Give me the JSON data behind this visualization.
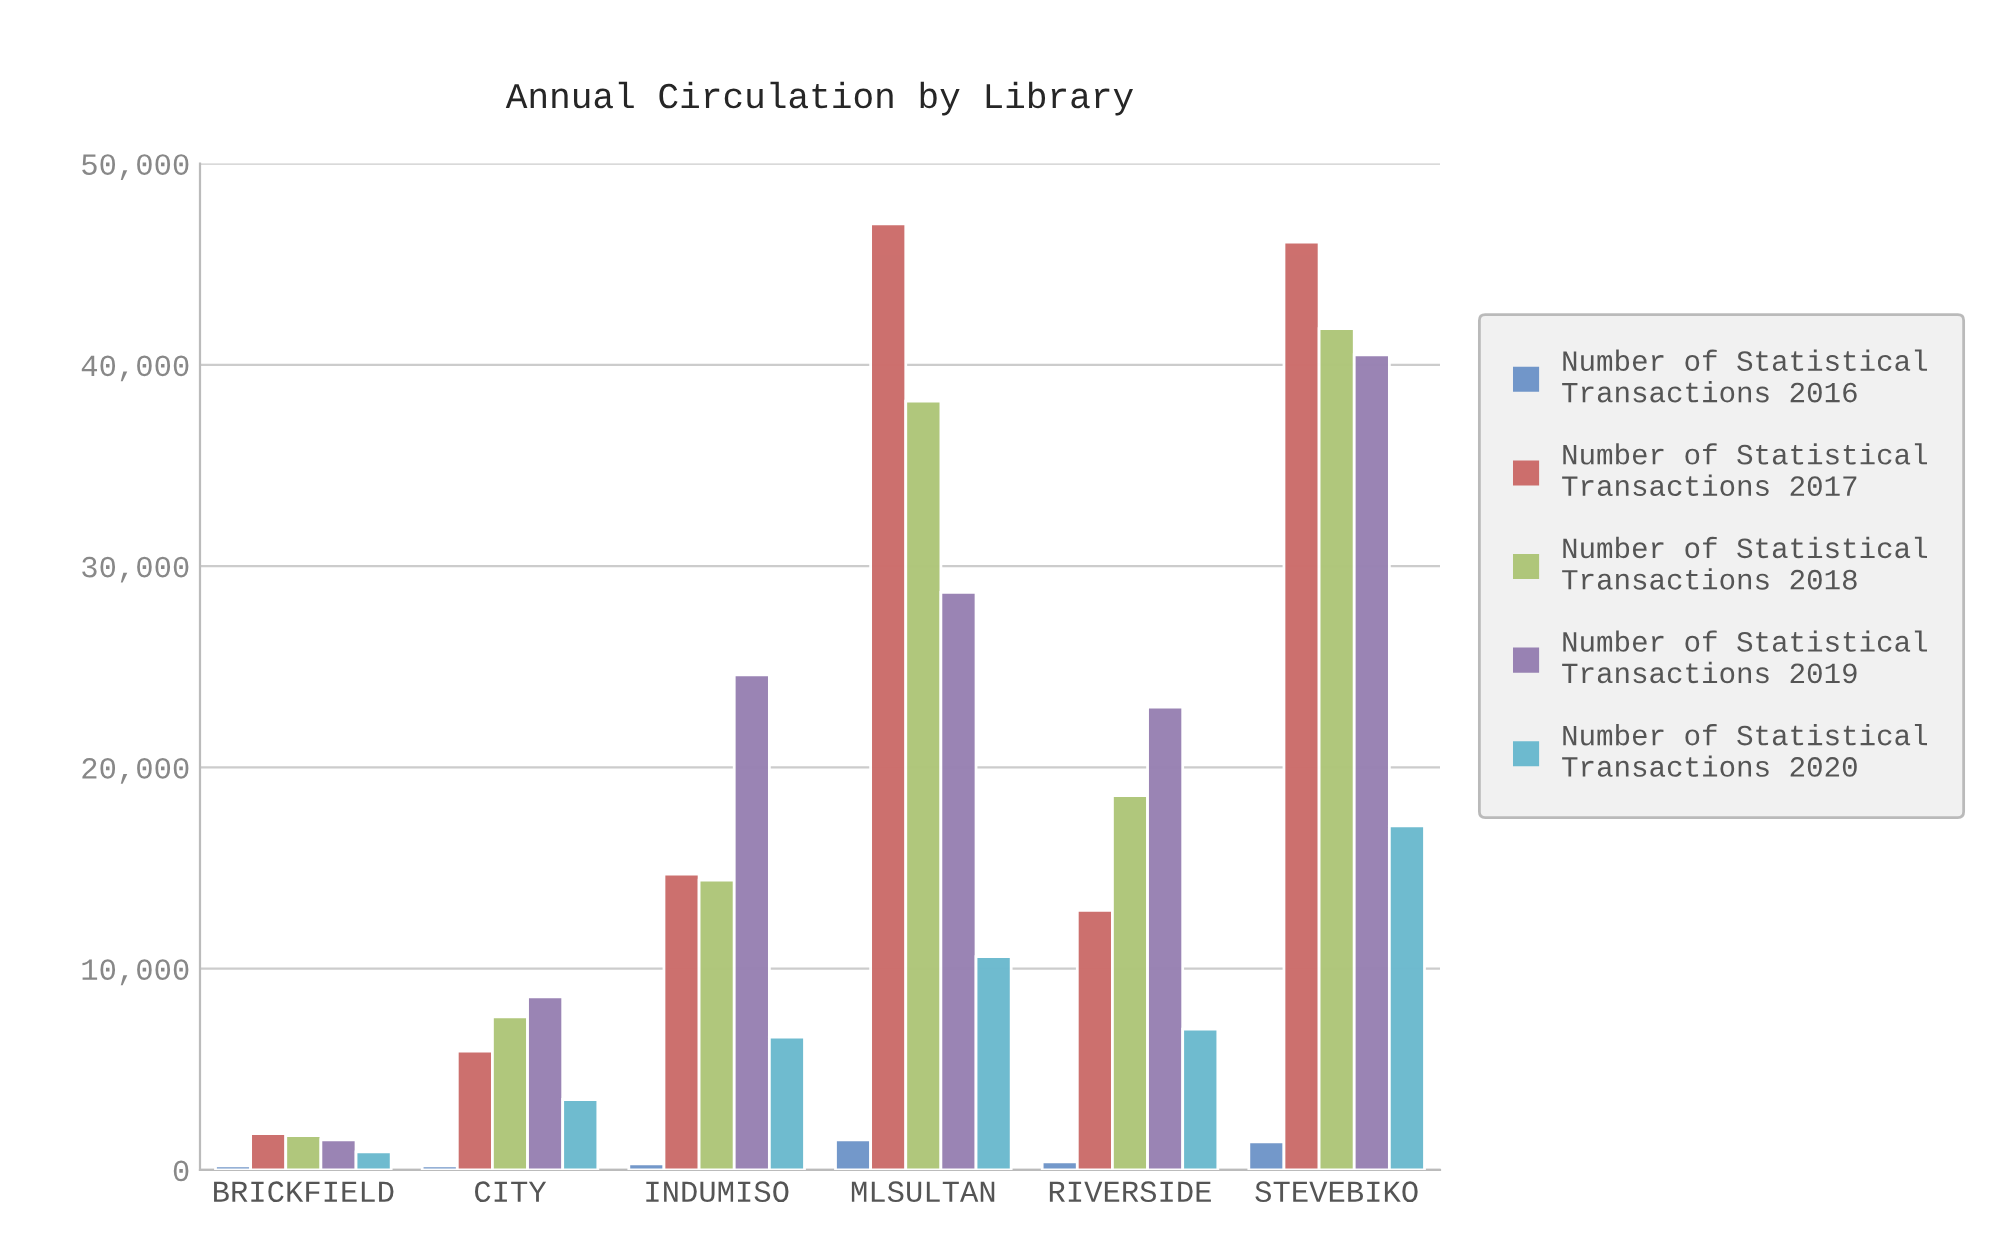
{
  "chart_data": {
    "type": "bar",
    "title": "Annual Circulation by Library",
    "categories": [
      "BRICKFIELD",
      "CITY",
      "INDUMISO",
      "MLSULTAN",
      "RIVERSIDE",
      "STEVEBIKO"
    ],
    "series": [
      {
        "name": "Number of Statistical Transactions 2016",
        "color": "#7196c9",
        "values": [
          200,
          200,
          300,
          1500,
          400,
          1400
        ]
      },
      {
        "name": "Number of Statistical Transactions 2017",
        "color": "#cc6e6c",
        "values": [
          1800,
          5900,
          14700,
          47000,
          12900,
          46100
        ]
      },
      {
        "name": "Number of Statistical Transactions 2018",
        "color": "#afc67a",
        "values": [
          1700,
          7600,
          14400,
          38200,
          18600,
          41800
        ]
      },
      {
        "name": "Number of Statistical Transactions 2019",
        "color": "#9882b3",
        "values": [
          1500,
          8600,
          24600,
          28700,
          23000,
          40500
        ]
      },
      {
        "name": "Number of Statistical Transactions 2020",
        "color": "#6dbacf",
        "values": [
          900,
          3500,
          6600,
          10600,
          7000,
          17100
        ]
      }
    ],
    "ylim": [
      0,
      50000
    ],
    "yticks": [
      0,
      {
        "value": 10000,
        "label": "10,000"
      },
      {
        "value": 20000,
        "label": "20,000"
      },
      {
        "value": 30000,
        "label": "30,000"
      },
      {
        "value": 40000,
        "label": "40,000"
      },
      {
        "value": 50000,
        "label": "50,000"
      }
    ],
    "grid": "y",
    "legend": "right"
  }
}
